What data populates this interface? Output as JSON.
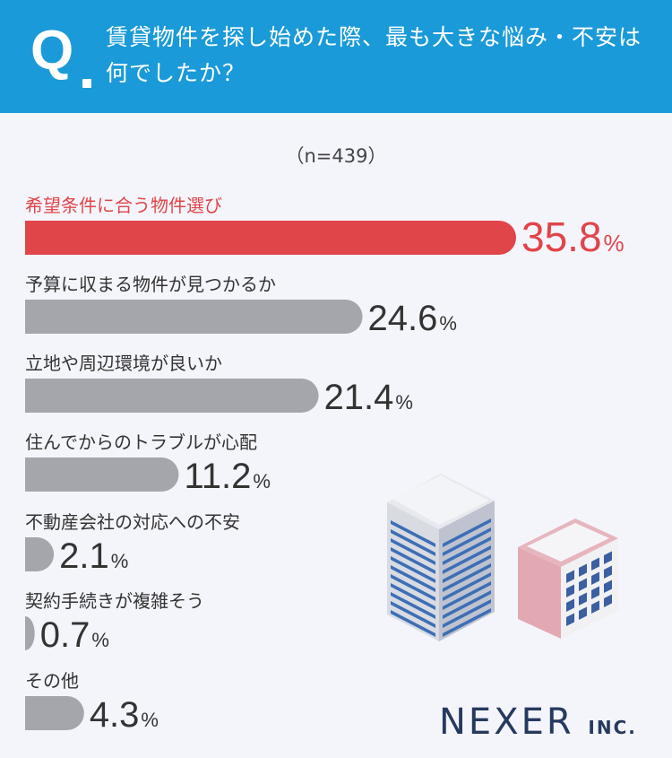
{
  "header": {
    "q_mark": "Q",
    "question": "賃貸物件を探し始めた際、最も大きな悩み・不安は何でしたか？"
  },
  "sample_size": "（n=439）",
  "brand": {
    "name": "NEXER",
    "suffix": "INC."
  },
  "colors": {
    "header_bg": "#1a9ad8",
    "highlight": "#e0454a",
    "bar": "#a5a6ab",
    "text": "#333333",
    "background": "#f4f5fb"
  },
  "chart_data": {
    "type": "bar",
    "orientation": "horizontal",
    "unit": "%",
    "categories": [
      "希望条件に合う物件選び",
      "予算に収まる物件が見つかるか",
      "立地や周辺環境が良いか",
      "住んでからのトラブルが心配",
      "不動産会社の対応への不安",
      "契約手続きが複雑そう",
      "その他"
    ],
    "values": [
      35.8,
      24.6,
      21.4,
      11.2,
      2.1,
      0.7,
      4.3
    ],
    "highlight_index": 0,
    "xlim": [
      0,
      35.8
    ]
  }
}
